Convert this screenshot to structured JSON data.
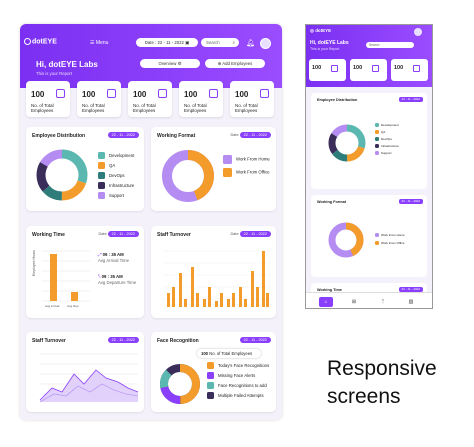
{
  "header": {
    "logo": "dotEYE",
    "menu_label": "Menu",
    "date": "Date : 22 - 11 - 2022",
    "search_placeholder": "Search",
    "greeting": "Hi, dotEYE Labs",
    "subtitle": "This is your Report",
    "overview_label": "Overview",
    "add_employees_label": "Add Employees"
  },
  "stats": [
    {
      "value": "100",
      "label": "No. of Total Employees"
    },
    {
      "value": "100",
      "label": "No. of Total Employees"
    },
    {
      "value": "100",
      "label": "No. of Total Employees"
    },
    {
      "value": "100",
      "label": "No. of Total Employees"
    },
    {
      "value": "100",
      "label": "No. of Total Employees"
    }
  ],
  "date_chip": "22 - 11 - 2022",
  "date_label": "Date",
  "employee_distribution": {
    "title": "Employee Distribution",
    "legend": [
      "Development",
      "QA",
      "DevOps",
      "Infrastructure",
      "Support"
    ],
    "colors": [
      "#5bb8b0",
      "#f39b2b",
      "#2e7d7a",
      "#3b2d5a",
      "#b58cf2"
    ]
  },
  "working_format": {
    "title": "Working Format",
    "legend": [
      "Work From Home",
      "Work From Office"
    ],
    "colors": [
      "#b58cf2",
      "#f39b2b"
    ]
  },
  "working_time": {
    "title": "Working Time",
    "stats": [
      {
        "value": "09 : 35 AM",
        "label": "Avg Arrival Time"
      },
      {
        "value": "09 : 35 AM",
        "label": "Avg Departure Time"
      }
    ],
    "ylabel": "Employee Hours"
  },
  "staff_turnover": {
    "title": "Staff Turnover"
  },
  "staff_turnover_2": {
    "title": "Staff Turnover"
  },
  "face_recognition": {
    "title": "Face Recognition",
    "total_label": "No. of Total Employees",
    "total_value": "100",
    "legend": [
      "Today's Face Recognitions",
      "Missing Face Alerts",
      "Face Recognitions to add",
      "Multiple Failed Attempts"
    ],
    "colors": [
      "#f39b2b",
      "#8a3ffc",
      "#5bb8b0",
      "#3b2d5a"
    ]
  },
  "mobile": {
    "logo": "dotEYE",
    "greeting": "Hi, dotEYE Labs",
    "subtitle": "This is your Report",
    "search_placeholder": "Search",
    "date": "22 - 11 - 2022",
    "stats": [
      "100",
      "100",
      "100"
    ],
    "cards": [
      "Employee Distribution",
      "Working Format",
      "Working Time"
    ],
    "nav": [
      "home-icon",
      "grid-icon",
      "people-icon",
      "chart-icon"
    ]
  },
  "caption": {
    "line1": "Responsive",
    "line2": "screens"
  }
}
